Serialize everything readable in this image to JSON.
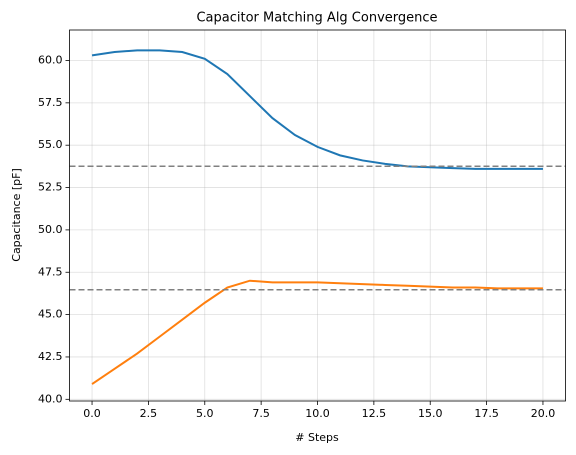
{
  "chart_data": {
    "type": "line",
    "title": "Capacitor Matching Alg Convergence",
    "x_label": "# Steps",
    "y_label": "Capacitance [pF]",
    "x": [
      0,
      1,
      2,
      3,
      4,
      5,
      6,
      7,
      8,
      9,
      10,
      11,
      12,
      13,
      14,
      15,
      16,
      17,
      18,
      19,
      20
    ],
    "series": [
      {
        "color": "#1f77b4",
        "values": [
          60.3,
          60.5,
          60.6,
          60.6,
          60.5,
          60.1,
          59.2,
          57.9,
          56.6,
          55.6,
          54.9,
          54.4,
          54.1,
          53.9,
          53.75,
          53.7,
          53.65,
          53.6,
          53.6,
          53.6,
          53.6
        ]
      },
      {
        "color": "#ff7f0e",
        "values": [
          40.9,
          41.8,
          42.7,
          43.7,
          44.7,
          45.7,
          46.6,
          47.0,
          46.9,
          46.9,
          46.9,
          46.85,
          46.8,
          46.75,
          46.7,
          46.65,
          46.6,
          46.6,
          46.55,
          46.55,
          46.55
        ]
      }
    ],
    "reference_lines": [
      53.76,
      46.47
    ],
    "reference_color": "#808080",
    "xlim": [
      -1,
      21
    ],
    "ylim": [
      39.9,
      61.8
    ],
    "xticks": [
      {
        "value": 0,
        "label": "0.0"
      },
      {
        "value": 2.5,
        "label": "2.5"
      },
      {
        "value": 5,
        "label": "5.0"
      },
      {
        "value": 7.5,
        "label": "7.5"
      },
      {
        "value": 10,
        "label": "10.0"
      },
      {
        "value": 12.5,
        "label": "12.5"
      },
      {
        "value": 15,
        "label": "15.0"
      },
      {
        "value": 17.5,
        "label": "17.5"
      },
      {
        "value": 20,
        "label": "20.0"
      }
    ],
    "yticks": [
      {
        "value": 40,
        "label": "40.0"
      },
      {
        "value": 42.5,
        "label": "42.5"
      },
      {
        "value": 45,
        "label": "45.0"
      },
      {
        "value": 47.5,
        "label": "47.5"
      },
      {
        "value": 50,
        "label": "50.0"
      },
      {
        "value": 52.5,
        "label": "52.5"
      },
      {
        "value": 55,
        "label": "55.0"
      },
      {
        "value": 57.5,
        "label": "57.5"
      },
      {
        "value": 60,
        "label": "60.0"
      }
    ],
    "grid": true
  }
}
